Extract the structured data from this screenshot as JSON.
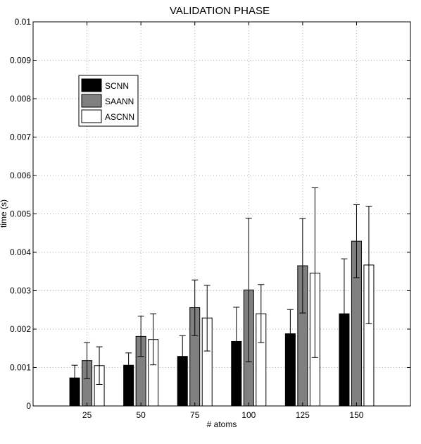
{
  "chart_data": {
    "type": "bar",
    "title": "VALIDATION PHASE",
    "xlabel": "# atoms",
    "ylabel": "time (s)",
    "categories": [
      "25",
      "50",
      "75",
      "100",
      "125",
      "150"
    ],
    "ylim": [
      0,
      0.01
    ],
    "yticks": [
      "0",
      "0.001",
      "0.002",
      "0.003",
      "0.004",
      "0.005",
      "0.006",
      "0.007",
      "0.008",
      "0.009",
      "0.01"
    ],
    "grid": true,
    "legend_position": "upper-left",
    "series": [
      {
        "name": "SCNN",
        "color": "#000000",
        "values": [
          0.00073,
          0.00106,
          0.00129,
          0.00168,
          0.00188,
          0.0024
        ],
        "err_low": [
          0.00043,
          0.00076,
          0.00076,
          0.00079,
          0.00125,
          0.00095
        ],
        "err_high": [
          0.00106,
          0.00138,
          0.00183,
          0.00257,
          0.00251,
          0.00383
        ]
      },
      {
        "name": "SAANN",
        "color": "#808080",
        "values": [
          0.00118,
          0.00181,
          0.00256,
          0.00302,
          0.00365,
          0.00429
        ],
        "err_low": [
          0.00071,
          0.00129,
          0.00183,
          0.00115,
          0.00242,
          0.00334
        ],
        "err_high": [
          0.00165,
          0.00234,
          0.00328,
          0.00489,
          0.00488,
          0.00524
        ]
      },
      {
        "name": "ASCNN",
        "color": "#ffffff",
        "values": [
          0.00105,
          0.00173,
          0.00229,
          0.0024,
          0.00346,
          0.00367
        ],
        "err_low": [
          0.00056,
          0.00107,
          0.00143,
          0.00165,
          0.00126,
          0.00214
        ],
        "err_high": [
          0.00154,
          0.0024,
          0.00314,
          0.00316,
          0.00568,
          0.0052
        ]
      }
    ]
  }
}
